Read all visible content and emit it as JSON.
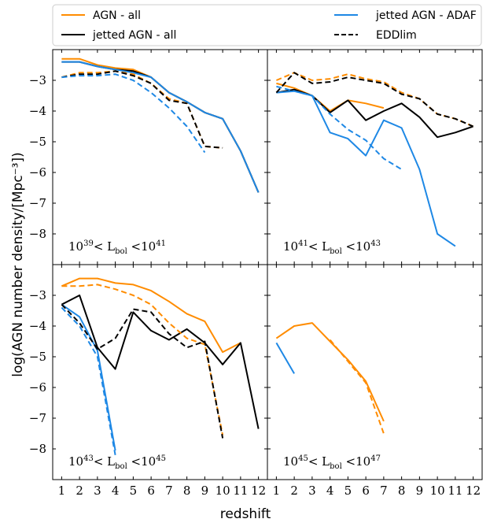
{
  "figure": {
    "ylabel": "log(AGN number density/[Mpc⁻³])",
    "xlabel": "redshift"
  },
  "legend": {
    "placement": "top",
    "entries": [
      {
        "label": "AGN - all",
        "color": "#ff8c00",
        "dash": "solid"
      },
      {
        "label": "jetted AGN - all",
        "color": "#000000",
        "dash": "solid"
      },
      {
        "label": "jetted AGN - ADAF",
        "color": "#1e88e5",
        "dash": "solid"
      },
      {
        "label": "EDDlim",
        "color": "#000000",
        "dash": "dashed"
      }
    ]
  },
  "chart_data": [
    {
      "type": "line",
      "panel": "top-left",
      "annotation": {
        "pre": "10",
        "preexp": "39",
        "mid": "< L",
        "sub": "bol",
        "post": " <10",
        "postexp": "41"
      },
      "xlim": [
        0.5,
        12.5
      ],
      "ylim": [
        -9,
        -2
      ],
      "series": [
        {
          "name": "AGN - all",
          "color": "#ff8c00",
          "dash": "solid",
          "x": [
            1,
            2,
            3,
            4,
            5,
            6,
            7,
            8,
            9,
            10,
            11,
            12
          ],
          "y": [
            -2.3,
            -2.3,
            -2.5,
            -2.6,
            -2.65,
            -2.9,
            -3.4,
            -3.7,
            -4.05,
            -4.25,
            -5.3,
            -6.65
          ]
        },
        {
          "name": "jetted AGN - all",
          "color": "#000000",
          "dash": "solid",
          "x": [
            1,
            2,
            3,
            4,
            5,
            6,
            7,
            8,
            9,
            10,
            11,
            12
          ],
          "y": [
            -2.4,
            -2.4,
            -2.55,
            -2.65,
            -2.7,
            -2.9,
            -3.4,
            -3.7,
            -4.05,
            -4.25,
            -5.3,
            -6.65
          ]
        },
        {
          "name": "jetted AGN - ADAF",
          "color": "#1e88e5",
          "dash": "solid",
          "x": [
            1,
            2,
            3,
            4,
            5,
            6,
            7,
            8,
            9,
            10,
            11,
            12
          ],
          "y": [
            -2.4,
            -2.4,
            -2.55,
            -2.65,
            -2.75,
            -2.9,
            -3.4,
            -3.7,
            -4.05,
            -4.25,
            -5.3,
            -6.65
          ]
        },
        {
          "name": "AGN - all",
          "color": "#ff8c00",
          "dash": "dashed",
          "x": [
            1,
            2,
            3,
            4,
            5,
            6,
            7,
            8,
            9,
            10
          ],
          "y": [
            -2.9,
            -2.75,
            -2.75,
            -2.7,
            -2.8,
            -3.1,
            -3.6,
            -3.75,
            -5.15,
            -5.2
          ]
        },
        {
          "name": "jetted AGN - all",
          "color": "#000000",
          "dash": "dashed",
          "x": [
            1,
            2,
            3,
            4,
            5,
            6,
            7,
            8,
            9,
            10
          ],
          "y": [
            -2.9,
            -2.8,
            -2.8,
            -2.7,
            -2.85,
            -3.1,
            -3.65,
            -3.75,
            -5.15,
            -5.2
          ]
        },
        {
          "name": "jetted AGN - ADAF",
          "color": "#1e88e5",
          "dash": "dashed",
          "x": [
            1,
            2,
            3,
            4,
            5,
            6,
            7,
            8,
            9
          ],
          "y": [
            -2.9,
            -2.85,
            -2.85,
            -2.8,
            -3.0,
            -3.4,
            -3.9,
            -4.5,
            -5.35
          ]
        }
      ]
    },
    {
      "type": "line",
      "panel": "top-right",
      "annotation": {
        "pre": "10",
        "preexp": "41",
        "mid": "< L",
        "sub": "bol",
        "post": " <10",
        "postexp": "43"
      },
      "xlim": [
        0.5,
        12.5
      ],
      "ylim": [
        -9,
        -2
      ],
      "series": [
        {
          "name": "AGN - all",
          "color": "#ff8c00",
          "dash": "solid",
          "x": [
            1,
            2,
            3,
            4,
            5,
            6,
            7
          ],
          "y": [
            -3.1,
            -3.25,
            -3.5,
            -4.0,
            -3.65,
            -3.75,
            -3.9
          ]
        },
        {
          "name": "jetted AGN - all",
          "color": "#000000",
          "dash": "solid",
          "x": [
            1,
            2,
            3,
            4,
            5,
            6,
            7,
            8,
            9,
            10,
            11,
            12
          ],
          "y": [
            -3.4,
            -3.3,
            -3.5,
            -4.05,
            -3.65,
            -4.3,
            -4.0,
            -3.75,
            -4.2,
            -4.85,
            -4.7,
            -4.5
          ]
        },
        {
          "name": "jetted AGN - ADAF",
          "color": "#1e88e5",
          "dash": "solid",
          "x": [
            1,
            2,
            3,
            4,
            5,
            6,
            7,
            8,
            9,
            10,
            11
          ],
          "y": [
            -3.4,
            -3.35,
            -3.5,
            -4.7,
            -4.9,
            -5.45,
            -4.3,
            -4.55,
            -5.9,
            -8.0,
            -8.4
          ]
        },
        {
          "name": "AGN - all",
          "color": "#ff8c00",
          "dash": "dashed",
          "x": [
            1,
            2,
            3,
            4,
            5,
            6,
            7,
            8,
            9,
            10,
            11,
            12
          ],
          "y": [
            -3.0,
            -2.75,
            -3.0,
            -2.95,
            -2.8,
            -2.95,
            -3.05,
            -3.4,
            -3.6,
            -4.1,
            -4.25,
            -4.5
          ]
        },
        {
          "name": "jetted AGN - all",
          "color": "#000000",
          "dash": "dashed",
          "x": [
            1,
            2,
            3,
            4,
            5,
            6,
            7,
            8,
            9,
            10,
            11,
            12
          ],
          "y": [
            -3.4,
            -2.75,
            -3.1,
            -3.05,
            -2.9,
            -3.0,
            -3.1,
            -3.45,
            -3.6,
            -4.1,
            -4.25,
            -4.5
          ]
        },
        {
          "name": "jetted AGN - ADAF",
          "color": "#1e88e5",
          "dash": "dashed",
          "x": [
            1,
            2,
            3,
            4,
            5,
            6,
            7,
            8
          ],
          "y": [
            -3.2,
            -3.35,
            -3.5,
            -4.1,
            -4.6,
            -4.95,
            -5.55,
            -5.9
          ]
        }
      ]
    },
    {
      "type": "line",
      "panel": "bottom-left",
      "annotation": {
        "pre": "10",
        "preexp": "43",
        "mid": "< L",
        "sub": "bol",
        "post": " <10",
        "postexp": "45"
      },
      "xlim": [
        0.5,
        12.5
      ],
      "ylim": [
        -9,
        -2
      ],
      "series": [
        {
          "name": "AGN - all",
          "color": "#ff8c00",
          "dash": "solid",
          "x": [
            1,
            2,
            3,
            4,
            5,
            6,
            7,
            8,
            9,
            10,
            11
          ],
          "y": [
            -2.7,
            -2.45,
            -2.45,
            -2.6,
            -2.65,
            -2.85,
            -3.2,
            -3.6,
            -3.85,
            -4.85,
            -4.55
          ]
        },
        {
          "name": "jetted AGN - all",
          "color": "#000000",
          "dash": "solid",
          "x": [
            1,
            2,
            3,
            4,
            5,
            6,
            7,
            8,
            9,
            10,
            11,
            12
          ],
          "y": [
            -3.3,
            -3.0,
            -4.7,
            -5.4,
            -3.55,
            -4.15,
            -4.45,
            -4.1,
            -4.55,
            -5.25,
            -4.55,
            -7.35
          ]
        },
        {
          "name": "jetted AGN - ADAF",
          "color": "#1e88e5",
          "dash": "solid",
          "x": [
            1,
            2,
            3,
            4
          ],
          "y": [
            -3.3,
            -3.7,
            -4.8,
            -8.05
          ]
        },
        {
          "name": "AGN - all",
          "color": "#ff8c00",
          "dash": "dashed",
          "x": [
            1,
            2,
            3,
            4,
            5,
            6,
            7,
            8,
            9,
            10
          ],
          "y": [
            -2.7,
            -2.7,
            -2.65,
            -2.8,
            -3.0,
            -3.3,
            -3.9,
            -4.4,
            -4.6,
            -7.55
          ]
        },
        {
          "name": "jetted AGN - all",
          "color": "#000000",
          "dash": "dashed",
          "x": [
            1,
            2,
            3,
            4,
            5,
            6,
            7,
            8,
            9,
            10
          ],
          "y": [
            -3.3,
            -3.9,
            -4.75,
            -4.4,
            -3.45,
            -3.55,
            -4.25,
            -4.7,
            -4.5,
            -7.65
          ]
        },
        {
          "name": "jetted AGN - ADAF",
          "color": "#1e88e5",
          "dash": "dashed",
          "x": [
            1,
            2,
            3,
            4
          ],
          "y": [
            -3.4,
            -4.0,
            -5.0,
            -8.2
          ]
        }
      ]
    },
    {
      "type": "line",
      "panel": "bottom-right",
      "annotation": {
        "pre": "10",
        "preexp": "45",
        "mid": "< L",
        "sub": "bol",
        "post": " <10",
        "postexp": "47"
      },
      "xlim": [
        0.5,
        12.5
      ],
      "ylim": [
        -9,
        -2
      ],
      "series": [
        {
          "name": "AGN - all",
          "color": "#ff8c00",
          "dash": "solid",
          "x": [
            1,
            2,
            3,
            4,
            5,
            6,
            7
          ],
          "y": [
            -4.4,
            -4.0,
            -3.9,
            -4.5,
            -5.1,
            -5.8,
            -7.1
          ]
        },
        {
          "name": "jetted AGN - ADAF",
          "color": "#1e88e5",
          "dash": "solid",
          "x": [
            1,
            2
          ],
          "y": [
            -4.55,
            -5.55
          ]
        },
        {
          "name": "AGN - all",
          "color": "#ff8c00",
          "dash": "dashed",
          "x": [
            4,
            5,
            6,
            7
          ],
          "y": [
            -4.45,
            -5.15,
            -5.85,
            -7.5
          ]
        }
      ]
    }
  ],
  "x_ticks": [
    1,
    2,
    3,
    4,
    5,
    6,
    7,
    8,
    9,
    10,
    11,
    12
  ],
  "y_ticks": [
    -3,
    -4,
    -5,
    -6,
    -7,
    -8
  ]
}
